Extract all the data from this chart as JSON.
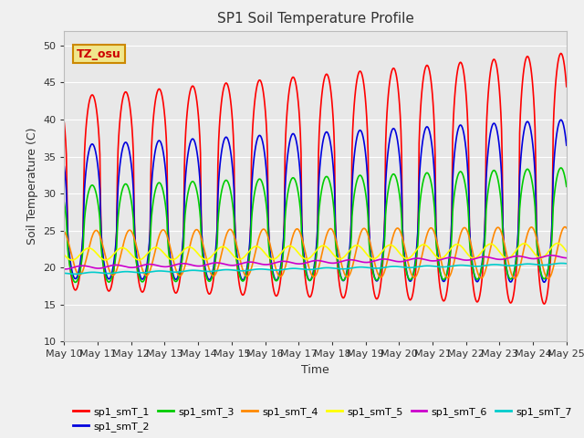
{
  "title": "SP1 Soil Temperature Profile",
  "xlabel": "Time",
  "ylabel": "Soil Temperature (C)",
  "ylim": [
    10,
    52
  ],
  "yticks": [
    10,
    15,
    20,
    25,
    30,
    35,
    40,
    45,
    50
  ],
  "annotation_text": "TZ_osu",
  "annotation_color": "#cc0000",
  "annotation_bg": "#f0e68c",
  "annotation_border": "#cc8800",
  "series_colors": {
    "sp1_smT_1": "#ff0000",
    "sp1_smT_2": "#0000dd",
    "sp1_smT_3": "#00cc00",
    "sp1_smT_4": "#ff8800",
    "sp1_smT_5": "#ffff00",
    "sp1_smT_6": "#cc00cc",
    "sp1_smT_7": "#00cccc"
  },
  "fig_bg": "#f0f0f0",
  "plot_bg": "#e8e8e8",
  "grid_color": "#ffffff",
  "n_days": 15,
  "start_day": 10
}
